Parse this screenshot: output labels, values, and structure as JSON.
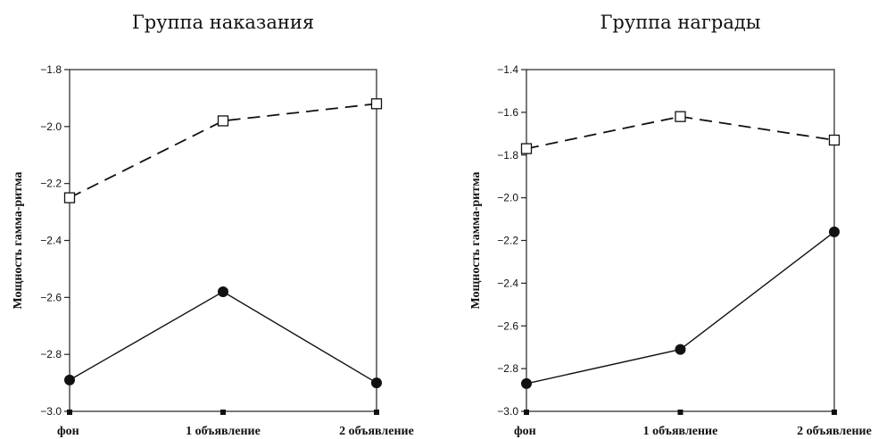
{
  "chart_data": [
    {
      "type": "line",
      "title": "Группа наказания",
      "ylabel": "Мощность гамма-ритма",
      "xlabel": "",
      "categories": [
        "фон",
        "1 объявление",
        "2 объявление"
      ],
      "ylim": [
        -3.0,
        -1.8
      ],
      "yticks": [
        "-1.8",
        "-2.0",
        "-2.2",
        "-2.4",
        "-2.6",
        "-2.8",
        "-3.0"
      ],
      "grid": false,
      "series": [
        {
          "marker": "open-square",
          "line_style": "dashed",
          "values": [
            -2.25,
            -1.98,
            -1.92
          ]
        },
        {
          "marker": "filled-circle",
          "line_style": "solid",
          "values": [
            -2.89,
            -2.58,
            -2.9
          ]
        }
      ]
    },
    {
      "type": "line",
      "title": "Группа награды",
      "ylabel": "Мощность гамма-ритма",
      "xlabel": "",
      "categories": [
        "фон",
        "1 объявление",
        "2 объявление"
      ],
      "ylim": [
        -3.0,
        -1.4
      ],
      "yticks": [
        "-1.4",
        "-1.6",
        "-1.8",
        "-2.0",
        "-2.2",
        "-2.4",
        "-2.6",
        "-2.8",
        "-3.0"
      ],
      "grid": false,
      "series": [
        {
          "marker": "open-square",
          "line_style": "dashed",
          "values": [
            -1.77,
            -1.62,
            -1.73
          ]
        },
        {
          "marker": "filled-circle",
          "line_style": "solid",
          "values": [
            -2.87,
            -2.71,
            -2.16
          ]
        }
      ]
    }
  ]
}
